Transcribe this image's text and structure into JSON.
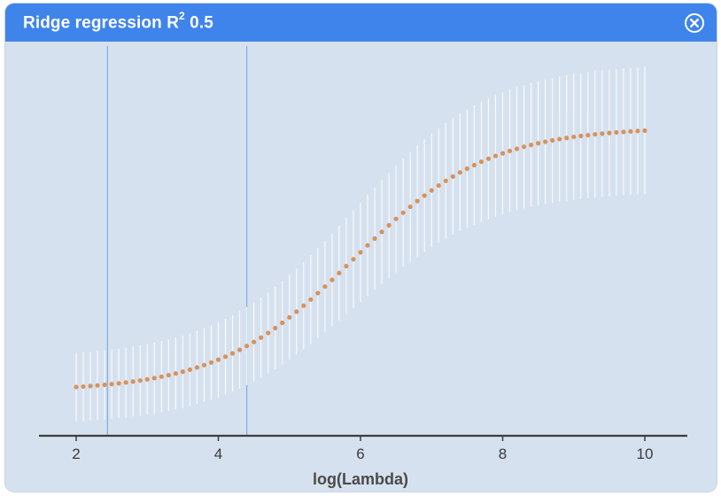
{
  "window": {
    "title_main": "Ridge regression R",
    "title_sup": "2",
    "title_value": " 0.5",
    "close_icon": "close-circle-icon"
  },
  "colors": {
    "titlebar": "#3f84ea",
    "plot_background": "#d6e1ef",
    "point": "#d8925a",
    "error_bar": "#ffffff",
    "vline": "#7aaee0",
    "axis": "#3d3d3d"
  },
  "chart_data": {
    "type": "scatter",
    "xlabel": "log(Lambda)",
    "ylabel": "",
    "title": "",
    "xlim": [
      1.5,
      10.5
    ],
    "ylim": [
      0,
      1
    ],
    "x_ticks": [
      "2",
      "4",
      "6",
      "8",
      "10"
    ],
    "x_tick_values": [
      2,
      4,
      6,
      8,
      10
    ],
    "vlines": [
      2.44,
      4.4
    ],
    "grid": false,
    "series": [
      {
        "x_start": 2.0,
        "x_end": 10.0,
        "n_points": 81,
        "y_min": 0.118,
        "y_max": 0.82,
        "y_mid_x": 5.9,
        "y_slope": 1.05,
        "error_halfwidth_low": 0.09,
        "error_halfwidth_high": 0.17
      }
    ]
  }
}
